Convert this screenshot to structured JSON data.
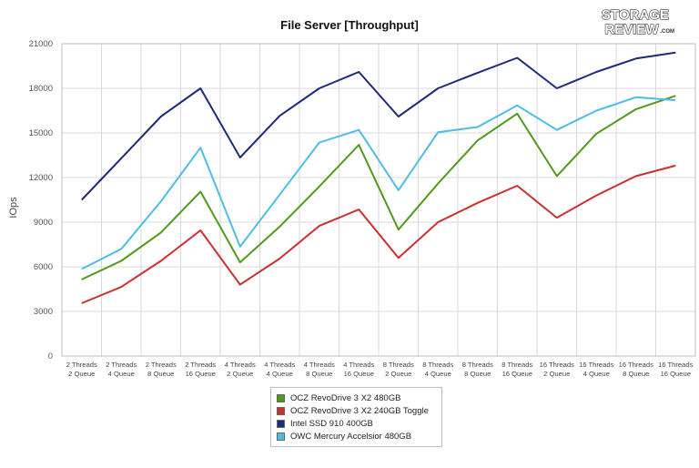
{
  "chart_data": {
    "type": "line",
    "title": "File Server [Throughput]",
    "ylabel": "IOps",
    "xlabel": "",
    "ylim": [
      0,
      21000
    ],
    "yticks": [
      0,
      3000,
      6000,
      9000,
      12000,
      15000,
      18000,
      21000
    ],
    "grid": true,
    "legend_position": "bottom",
    "categories": [
      [
        "2 Threads",
        "2 Queue"
      ],
      [
        "2 Threads",
        "4 Queue"
      ],
      [
        "2 Threads",
        "8 Queue"
      ],
      [
        "2 Threads",
        "16 Queue"
      ],
      [
        "4 Threads",
        "2 Queue"
      ],
      [
        "4 Threads",
        "4 Queue"
      ],
      [
        "4 Threads",
        "8 Queue"
      ],
      [
        "4 Threads",
        "16 Queue"
      ],
      [
        "8 Threads",
        "2 Queue"
      ],
      [
        "8 Threads",
        "4 Queue"
      ],
      [
        "8 Threads",
        "8 Queue"
      ],
      [
        "8 Threads",
        "16 Queue"
      ],
      [
        "16 Threads",
        "2 Queue"
      ],
      [
        "16 Threads",
        "4 Queue"
      ],
      [
        "16 Threads",
        "8 Queue"
      ],
      [
        "16 Threads",
        "16 Queue"
      ]
    ],
    "series": [
      {
        "name": "OCZ RevoDrive 3 X2 480GB",
        "color": "#4f9a1b",
        "values": [
          5150,
          6400,
          8300,
          11050,
          6300,
          8700,
          11400,
          14200,
          8500,
          11600,
          14500,
          16300,
          12100,
          14950,
          16600,
          17500
        ]
      },
      {
        "name": "OCZ RevoDrive 3 X2 240GB Toggle",
        "color": "#cc2f2f",
        "values": [
          3550,
          4650,
          6400,
          8450,
          4800,
          6550,
          8750,
          9850,
          6600,
          9000,
          10300,
          11450,
          9300,
          10800,
          12100,
          12800
        ]
      },
      {
        "name": "Intel SSD 910 400GB",
        "color": "#1f2a78",
        "values": [
          10500,
          13300,
          16100,
          18000,
          13350,
          16150,
          18000,
          19100,
          16100,
          18000,
          19050,
          20050,
          18000,
          19100,
          20000,
          20400
        ]
      },
      {
        "name": "OWC Mercury Accelsior 480GB",
        "color": "#4fbce6",
        "values": [
          5850,
          7200,
          10400,
          14000,
          7350,
          10850,
          14350,
          15200,
          11150,
          15050,
          15400,
          16850,
          15200,
          16500,
          17400,
          17200
        ]
      }
    ]
  },
  "logo": {
    "line1": "STORAGE",
    "line2": "REVIEW",
    "suffix": ".COM"
  }
}
